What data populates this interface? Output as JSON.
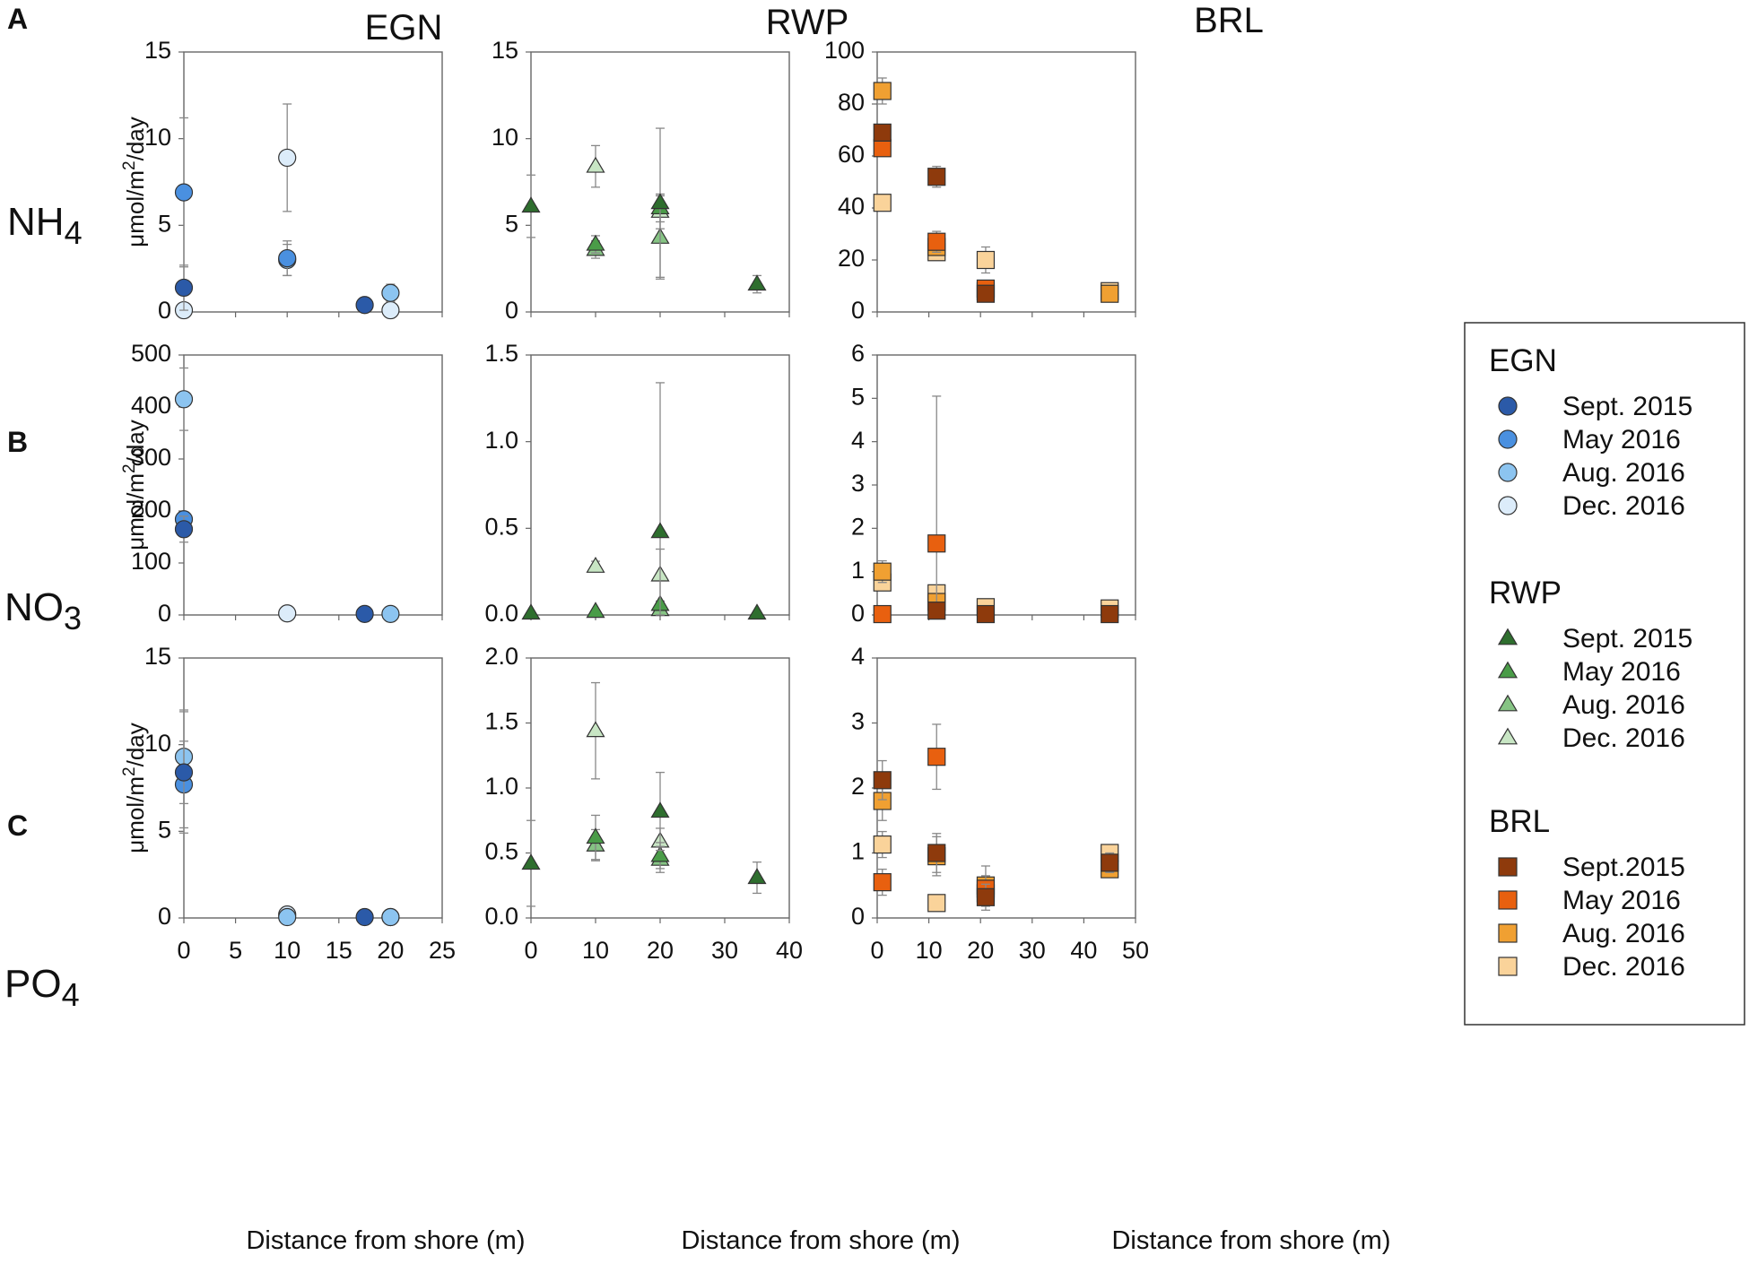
{
  "figure": {
    "panel_letters": [
      "A",
      "B",
      "C"
    ],
    "x_label": "Distance from shore (m)",
    "y_label_prefix": "μmol/m",
    "y_label_exp": "2",
    "y_label_suffix": "/day"
  },
  "colors": {
    "EGN": [
      "#2b5aa8",
      "#4a90e0",
      "#8cc4f0",
      "#dcecfa"
    ],
    "RWP": [
      "#2e6e2e",
      "#4a9c48",
      "#86c484",
      "#c8e6c4"
    ],
    "BRL": [
      "#8e3a0c",
      "#e8600f",
      "#f0a032",
      "#fad39a"
    ]
  },
  "legend": {
    "groups": [
      {
        "site": "EGN",
        "shape": "circle",
        "items": [
          "Sept. 2015",
          "May 2016",
          "Aug. 2016",
          "Dec. 2016"
        ]
      },
      {
        "site": "RWP",
        "shape": "triangle",
        "items": [
          "Sept. 2015",
          "May 2016",
          "Aug. 2016",
          "Dec. 2016"
        ]
      },
      {
        "site": "BRL",
        "shape": "square",
        "items": [
          "Sept.2015",
          "May 2016",
          "Aug. 2016",
          "Dec. 2016"
        ]
      }
    ]
  },
  "chart_data": [
    {
      "type": "scatter",
      "site": "EGN",
      "nutrient": "NH4",
      "ylim": [
        0,
        15
      ],
      "yticks": [
        "0",
        "5",
        "10",
        "15"
      ],
      "xlim": [
        0,
        25
      ],
      "xticks": [
        "0",
        "5",
        "10",
        "15",
        "20",
        "25"
      ],
      "series": [
        {
          "name": "Sept. 2015",
          "points": [
            {
              "x": 0,
              "y": 1.4,
              "err": 1.3
            },
            {
              "x": 17.5,
              "y": 0.4,
              "err": 0.1
            }
          ]
        },
        {
          "name": "May 2016",
          "points": [
            {
              "x": 0,
              "y": 6.9,
              "err": 4.3
            },
            {
              "x": 10,
              "y": 3.1,
              "err": 1.0
            }
          ]
        },
        {
          "name": "Aug. 2016",
          "points": [
            {
              "x": 10,
              "y": 3.0,
              "err": 0.9
            },
            {
              "x": 20,
              "y": 1.1,
              "err": 0.5
            }
          ]
        },
        {
          "name": "Dec. 2016",
          "points": [
            {
              "x": 0,
              "y": 0.1,
              "err": 0.1
            },
            {
              "x": 10,
              "y": 8.9,
              "err": 3.1
            },
            {
              "x": 20,
              "y": 0.1,
              "err": 0.1
            }
          ]
        }
      ]
    },
    {
      "type": "scatter",
      "site": "RWP",
      "nutrient": "NH4",
      "ylim": [
        0,
        15
      ],
      "yticks": [
        "0",
        "5",
        "10",
        "15"
      ],
      "xlim": [
        0,
        40
      ],
      "xticks": [
        "0",
        "10",
        "20",
        "30",
        "40"
      ],
      "series": [
        {
          "name": "Sept. 2015",
          "points": [
            {
              "x": 0,
              "y": 6.1,
              "err": 1.8
            },
            {
              "x": 20,
              "y": 6.3,
              "err": 4.3
            },
            {
              "x": 35,
              "y": 1.6,
              "err": 0.5
            }
          ]
        },
        {
          "name": "May 2016",
          "points": [
            {
              "x": 10,
              "y": 3.9,
              "err": 0.5
            },
            {
              "x": 20,
              "y": 6.0,
              "err": 0.8
            }
          ]
        },
        {
          "name": "Aug. 2016",
          "points": [
            {
              "x": 10,
              "y": 3.6,
              "err": 0.5
            },
            {
              "x": 20,
              "y": 4.3,
              "err": 2.4
            }
          ]
        },
        {
          "name": "Dec. 2016",
          "points": [
            {
              "x": 10,
              "y": 8.4,
              "err": 1.2
            },
            {
              "x": 20,
              "y": 5.8,
              "err": 1.0
            }
          ]
        }
      ]
    },
    {
      "type": "scatter",
      "site": "BRL",
      "nutrient": "NH4",
      "ylim": [
        0,
        100
      ],
      "yticks": [
        "0",
        "20",
        "40",
        "60",
        "80",
        "100"
      ],
      "xlim": [
        0,
        50
      ],
      "xticks": [
        "0",
        "10",
        "20",
        "30",
        "40",
        "50"
      ],
      "series": [
        {
          "name": "Sept.2015",
          "points": [
            {
              "x": 1,
              "y": 69,
              "err": 3
            },
            {
              "x": 11.5,
              "y": 52,
              "err": 4
            },
            {
              "x": 21,
              "y": 7,
              "err": 2
            }
          ]
        },
        {
          "name": "May 2016",
          "points": [
            {
              "x": 1,
              "y": 63,
              "err": 3
            },
            {
              "x": 11.5,
              "y": 27,
              "err": 4
            },
            {
              "x": 21,
              "y": 9,
              "err": 2
            }
          ]
        },
        {
          "name": "Aug. 2016",
          "points": [
            {
              "x": 1,
              "y": 85,
              "err": 5
            },
            {
              "x": 11.5,
              "y": 25,
              "err": 3
            },
            {
              "x": 21,
              "y": 8,
              "err": 2
            },
            {
              "x": 45,
              "y": 7,
              "err": 1
            }
          ]
        },
        {
          "name": "Dec. 2016",
          "points": [
            {
              "x": 1,
              "y": 42,
              "err": 2
            },
            {
              "x": 11.5,
              "y": 23,
              "err": 3
            },
            {
              "x": 21,
              "y": 20,
              "err": 5
            },
            {
              "x": 45,
              "y": 8,
              "err": 2
            }
          ]
        }
      ]
    },
    {
      "type": "scatter",
      "site": "EGN",
      "nutrient": "NO3",
      "ylim": [
        0,
        500
      ],
      "yticks": [
        "0",
        "100",
        "200",
        "300",
        "400",
        "500"
      ],
      "xlim": [
        0,
        25
      ],
      "xticks": [
        "0",
        "5",
        "10",
        "15",
        "20",
        "25"
      ],
      "series": [
        {
          "name": "Sept. 2015",
          "points": [
            {
              "x": 0,
              "y": 165,
              "err": 25
            },
            {
              "x": 17.5,
              "y": 2,
              "err": 1
            }
          ]
        },
        {
          "name": "May 2016",
          "points": [
            {
              "x": 0,
              "y": 184,
              "err": 12
            }
          ]
        },
        {
          "name": "Aug. 2016",
          "points": [
            {
              "x": 0,
              "y": 415,
              "err": 60
            },
            {
              "x": 20,
              "y": 2,
              "err": 1
            }
          ]
        },
        {
          "name": "Dec. 2016",
          "points": [
            {
              "x": 10,
              "y": 3,
              "err": 2
            }
          ]
        }
      ]
    },
    {
      "type": "scatter",
      "site": "RWP",
      "nutrient": "NO3",
      "ylim": [
        0,
        1.5
      ],
      "yticks": [
        "0.0",
        "0.5",
        "1.0",
        "1.5"
      ],
      "xlim": [
        0,
        40
      ],
      "xticks": [
        "0",
        "10",
        "20",
        "30",
        "40"
      ],
      "series": [
        {
          "name": "Sept. 2015",
          "points": [
            {
              "x": 0,
              "y": 0.01,
              "err": 0.01
            },
            {
              "x": 20,
              "y": 0.48,
              "err": 0.86
            },
            {
              "x": 35,
              "y": 0.01,
              "err": 0.01
            }
          ]
        },
        {
          "name": "May 2016",
          "points": [
            {
              "x": 10,
              "y": 0.02,
              "err": 0.01
            },
            {
              "x": 20,
              "y": 0.06,
              "err": 0.02
            }
          ]
        },
        {
          "name": "Aug. 2016",
          "points": [
            {
              "x": 20,
              "y": 0.03,
              "err": 0.02
            }
          ]
        },
        {
          "name": "Dec. 2016",
          "points": [
            {
              "x": 10,
              "y": 0.28,
              "err": 0.03
            },
            {
              "x": 20,
              "y": 0.23,
              "err": 0.15
            }
          ]
        }
      ]
    },
    {
      "type": "scatter",
      "site": "BRL",
      "nutrient": "NO3",
      "ylim": [
        0,
        6
      ],
      "yticks": [
        "0",
        "1",
        "2",
        "3",
        "4",
        "5",
        "6"
      ],
      "xlim": [
        0,
        50
      ],
      "xticks": [
        "0",
        "10",
        "20",
        "30",
        "40",
        "50"
      ],
      "series": [
        {
          "name": "Sept.2015",
          "points": [
            {
              "x": 11.5,
              "y": 0.1,
              "err": 0.05
            },
            {
              "x": 21,
              "y": 0.02,
              "err": 0.02
            },
            {
              "x": 45,
              "y": 0.02,
              "err": 0.02
            }
          ]
        },
        {
          "name": "May 2016",
          "points": [
            {
              "x": 1,
              "y": 0.02,
              "err": 0.02
            },
            {
              "x": 11.5,
              "y": 1.65,
              "err": 3.4
            }
          ]
        },
        {
          "name": "Aug. 2016",
          "points": [
            {
              "x": 1,
              "y": 1.0,
              "err": 0.25
            },
            {
              "x": 11.5,
              "y": 0.3,
              "err": 0.1
            }
          ]
        },
        {
          "name": "Dec. 2016",
          "points": [
            {
              "x": 1,
              "y": 0.75,
              "err": 0.15
            },
            {
              "x": 11.5,
              "y": 0.5,
              "err": 0.15
            },
            {
              "x": 21,
              "y": 0.18,
              "err": 0.1
            },
            {
              "x": 45,
              "y": 0.15,
              "err": 0.08
            }
          ]
        }
      ]
    },
    {
      "type": "scatter",
      "site": "EGN",
      "nutrient": "PO4",
      "ylim": [
        0,
        15
      ],
      "yticks": [
        "0",
        "5",
        "10",
        "15"
      ],
      "xlim": [
        0,
        25
      ],
      "xticks": [
        "0",
        "5",
        "10",
        "15",
        "20",
        "25"
      ],
      "series": [
        {
          "name": "Sept. 2015",
          "points": [
            {
              "x": 0,
              "y": 8.4,
              "err": 3.5
            },
            {
              "x": 17.5,
              "y": 0.05,
              "err": 0.05
            }
          ]
        },
        {
          "name": "May 2016",
          "points": [
            {
              "x": 0,
              "y": 7.7,
              "err": 2.5
            }
          ]
        },
        {
          "name": "Aug. 2016",
          "points": [
            {
              "x": 0,
              "y": 9.3,
              "err": 2.7
            },
            {
              "x": 10,
              "y": 0.05,
              "err": 0.05
            },
            {
              "x": 20,
              "y": 0.05,
              "err": 0.05
            }
          ]
        },
        {
          "name": "Dec. 2016",
          "points": [
            {
              "x": 10,
              "y": 0.2,
              "err": 0.1
            },
            {
              "x": 20,
              "y": 0.05,
              "err": 0.05
            }
          ]
        }
      ]
    },
    {
      "type": "scatter",
      "site": "RWP",
      "nutrient": "PO4",
      "ylim": [
        0,
        2.0
      ],
      "yticks": [
        "0.0",
        "0.5",
        "1.0",
        "1.5",
        "2.0"
      ],
      "xlim": [
        0,
        40
      ],
      "xticks": [
        "0",
        "10",
        "20",
        "30",
        "40"
      ],
      "series": [
        {
          "name": "Sept. 2015",
          "points": [
            {
              "x": 0,
              "y": 0.42,
              "err": 0.33
            },
            {
              "x": 20,
              "y": 0.82,
              "err": 0.3
            },
            {
              "x": 35,
              "y": 0.31,
              "err": 0.12
            }
          ]
        },
        {
          "name": "May 2016",
          "points": [
            {
              "x": 10,
              "y": 0.62,
              "err": 0.17
            },
            {
              "x": 20,
              "y": 0.48,
              "err": 0.1
            }
          ]
        },
        {
          "name": "Aug. 2016",
          "points": [
            {
              "x": 10,
              "y": 0.56,
              "err": 0.12
            },
            {
              "x": 20,
              "y": 0.45,
              "err": 0.1
            }
          ]
        },
        {
          "name": "Dec. 2016",
          "points": [
            {
              "x": 10,
              "y": 1.44,
              "err": 0.37
            },
            {
              "x": 20,
              "y": 0.59,
              "err": 0.1
            }
          ]
        }
      ]
    },
    {
      "type": "scatter",
      "site": "BRL",
      "nutrient": "PO4",
      "ylim": [
        0,
        4
      ],
      "yticks": [
        "0",
        "1",
        "2",
        "3",
        "4"
      ],
      "xlim": [
        0,
        50
      ],
      "xticks": [
        "0",
        "10",
        "20",
        "30",
        "40",
        "50"
      ],
      "series": [
        {
          "name": "Sept.2015",
          "points": [
            {
              "x": 1,
              "y": 2.12,
              "err": 0.3
            },
            {
              "x": 11.5,
              "y": 1.0,
              "err": 0.3
            },
            {
              "x": 21,
              "y": 0.32,
              "err": 0.2
            },
            {
              "x": 45,
              "y": 0.85,
              "err": 0.15
            }
          ]
        },
        {
          "name": "May 2016",
          "points": [
            {
              "x": 1,
              "y": 0.55,
              "err": 0.2
            },
            {
              "x": 11.5,
              "y": 2.48,
              "err": 0.5
            },
            {
              "x": 21,
              "y": 0.45,
              "err": 0.2
            }
          ]
        },
        {
          "name": "Aug. 2016",
          "points": [
            {
              "x": 1,
              "y": 1.8,
              "err": 0.3
            },
            {
              "x": 11.5,
              "y": 0.95,
              "err": 0.3
            },
            {
              "x": 21,
              "y": 0.5,
              "err": 0.3
            },
            {
              "x": 45,
              "y": 0.75,
              "err": 0.1
            }
          ]
        },
        {
          "name": "Dec. 2016",
          "points": [
            {
              "x": 1,
              "y": 1.13,
              "err": 0.2
            },
            {
              "x": 11.5,
              "y": 0.23,
              "err": 0.1
            },
            {
              "x": 21,
              "y": 0.38,
              "err": 0.2
            },
            {
              "x": 45,
              "y": 1.0,
              "err": 0.1
            }
          ]
        }
      ]
    }
  ]
}
